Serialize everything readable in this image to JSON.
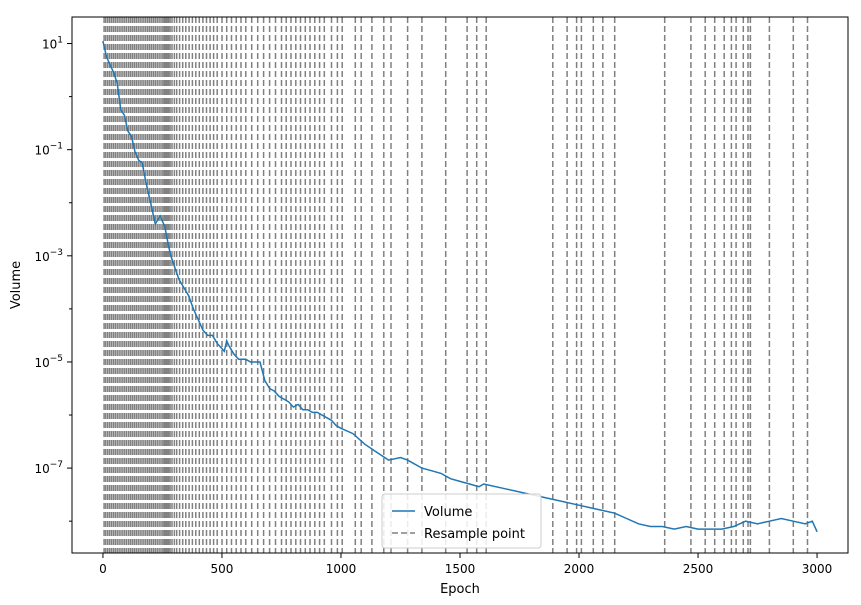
{
  "chart_data": {
    "type": "line",
    "title": "",
    "xlabel": "Epoch",
    "ylabel": "Volume",
    "xlim": [
      -130,
      3130
    ],
    "ylim_log10": [
      -8.6,
      1.5
    ],
    "y_scale": "log",
    "grid": false,
    "legend_position": "lower center",
    "xticks": [
      {
        "value": 0,
        "label": "0"
      },
      {
        "value": 500,
        "label": "500"
      },
      {
        "value": 1000,
        "label": "1000"
      },
      {
        "value": 1500,
        "label": "1500"
      },
      {
        "value": 2000,
        "label": "2000"
      },
      {
        "value": 2500,
        "label": "2500"
      },
      {
        "value": 3000,
        "label": "3000"
      }
    ],
    "yticks": [
      {
        "exp": 1,
        "base": "10",
        "sup": "1"
      },
      {
        "exp": -1,
        "base": "10",
        "sup": "−1"
      },
      {
        "exp": -3,
        "base": "10",
        "sup": "−3"
      },
      {
        "exp": -5,
        "base": "10",
        "sup": "−5"
      },
      {
        "exp": -7,
        "base": "10",
        "sup": "−7"
      }
    ],
    "series": [
      {
        "name": "Volume",
        "color": "#1f77b4",
        "x": [
          0,
          15,
          30,
          45,
          60,
          75,
          90,
          105,
          120,
          135,
          150,
          165,
          180,
          200,
          220,
          240,
          260,
          275,
          285,
          300,
          320,
          340,
          360,
          380,
          400,
          420,
          440,
          460,
          480,
          500,
          510,
          520,
          530,
          550,
          570,
          600,
          620,
          640,
          660,
          680,
          700,
          720,
          740,
          760,
          780,
          800,
          820,
          840,
          860,
          880,
          900,
          920,
          940,
          960,
          980,
          1000,
          1050,
          1100,
          1150,
          1200,
          1250,
          1280,
          1300,
          1340,
          1380,
          1420,
          1460,
          1500,
          1540,
          1580,
          1600,
          1700,
          1800,
          1900,
          2000,
          2050,
          2100,
          2150,
          2200,
          2250,
          2300,
          2350,
          2400,
          2450,
          2500,
          2550,
          2600,
          2650,
          2700,
          2750,
          2800,
          2850,
          2900,
          2950,
          2980,
          3000
        ],
        "values_log10": [
          1.05,
          0.75,
          0.6,
          0.45,
          0.25,
          -0.25,
          -0.35,
          -0.65,
          -0.75,
          -1.05,
          -1.2,
          -1.25,
          -1.6,
          -2.0,
          -2.4,
          -2.25,
          -2.45,
          -2.8,
          -3.0,
          -3.2,
          -3.45,
          -3.6,
          -3.75,
          -4.0,
          -4.2,
          -4.4,
          -4.5,
          -4.5,
          -4.65,
          -4.75,
          -4.8,
          -4.6,
          -4.7,
          -4.85,
          -4.95,
          -4.95,
          -5.0,
          -5.0,
          -5.0,
          -5.35,
          -5.5,
          -5.55,
          -5.65,
          -5.7,
          -5.75,
          -5.85,
          -5.8,
          -5.9,
          -5.9,
          -5.95,
          -5.95,
          -6.0,
          -6.05,
          -6.1,
          -6.2,
          -6.25,
          -6.35,
          -6.55,
          -6.7,
          -6.85,
          -6.8,
          -6.85,
          -6.9,
          -7.0,
          -7.05,
          -7.1,
          -7.2,
          -7.25,
          -7.3,
          -7.35,
          -7.3,
          -7.4,
          -7.5,
          -7.6,
          -7.7,
          -7.75,
          -7.8,
          -7.85,
          -7.95,
          -8.05,
          -8.1,
          -8.1,
          -8.15,
          -8.1,
          -8.15,
          -8.15,
          -8.15,
          -8.1,
          -8.0,
          -8.05,
          -8.0,
          -7.95,
          -8.0,
          -8.05,
          -8.0,
          -8.2
        ]
      },
      {
        "name": "Resample point",
        "color": "#808080",
        "style": "dashed-vertical",
        "x": [
          5,
          12,
          20,
          28,
          36,
          44,
          52,
          60,
          68,
          76,
          84,
          92,
          100,
          108,
          116,
          124,
          132,
          140,
          148,
          156,
          164,
          172,
          180,
          188,
          196,
          204,
          212,
          220,
          228,
          236,
          244,
          252,
          258,
          264,
          270,
          276,
          282,
          290,
          300,
          310,
          322,
          335,
          348,
          362,
          376,
          390,
          405,
          420,
          435,
          450,
          465,
          480,
          500,
          520,
          540,
          560,
          580,
          600,
          625,
          650,
          675,
          700,
          725,
          750,
          770,
          790,
          810,
          830,
          850,
          870,
          890,
          910,
          930,
          960,
          985,
          1005,
          1060,
          1085,
          1130,
          1180,
          1210,
          1280,
          1340,
          1440,
          1530,
          1570,
          1610,
          1890,
          1950,
          1990,
          2010,
          2060,
          2100,
          2150,
          2360,
          2470,
          2530,
          2570,
          2610,
          2640,
          2660,
          2690,
          2710,
          2720,
          2800,
          2900,
          2960
        ]
      }
    ]
  }
}
